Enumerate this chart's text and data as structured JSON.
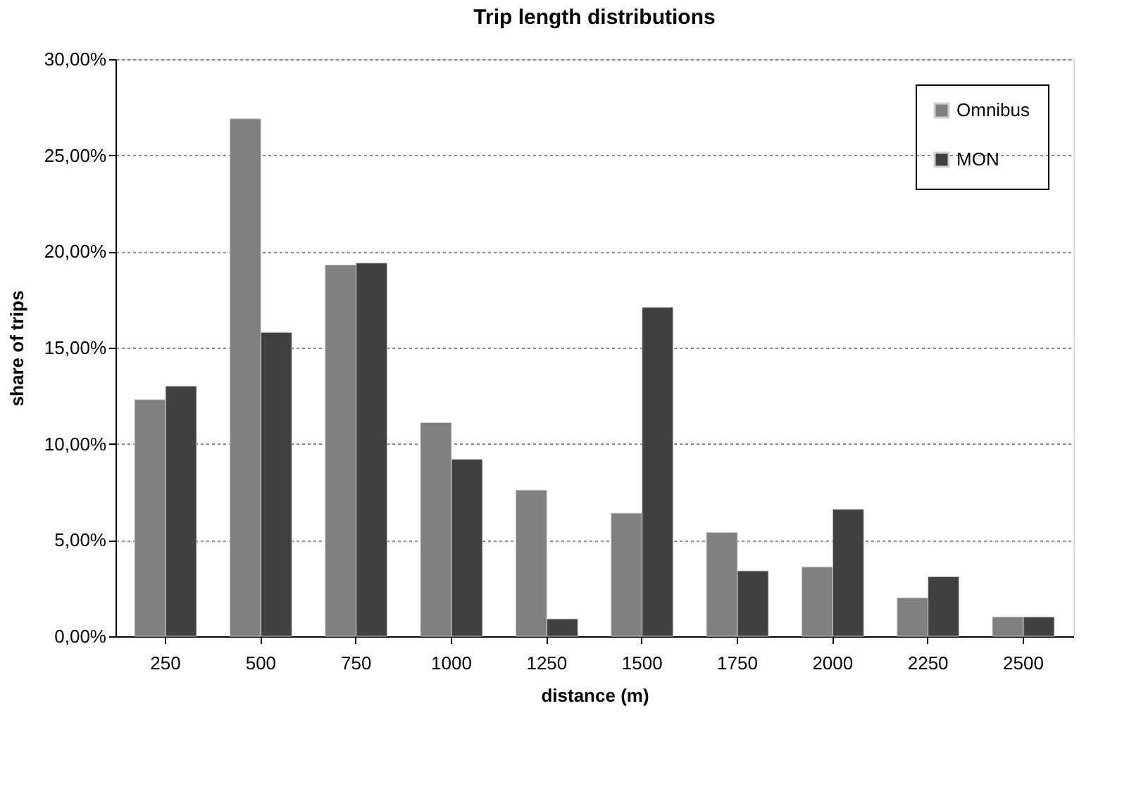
{
  "chart_data": {
    "type": "bar",
    "title": "Trip length distributions",
    "xlabel": "distance (m)",
    "ylabel": "share of trips",
    "categories": [
      "250",
      "500",
      "750",
      "1000",
      "1250",
      "1500",
      "1750",
      "2000",
      "2250",
      "2500"
    ],
    "series": [
      {
        "name": "Omnibus",
        "color": "#808080",
        "values": [
          12.3,
          26.9,
          19.3,
          11.1,
          7.6,
          6.4,
          5.4,
          3.6,
          2.0,
          1.0
        ]
      },
      {
        "name": "MON",
        "color": "#404040",
        "values": [
          13.0,
          15.8,
          19.4,
          9.2,
          0.9,
          17.1,
          3.4,
          6.6,
          3.1,
          1.0
        ]
      }
    ],
    "ylim": [
      0,
      30
    ],
    "yticks": [
      {
        "value": 0,
        "label": "0,00%"
      },
      {
        "value": 5,
        "label": "5,00%"
      },
      {
        "value": 10,
        "label": "10,00%"
      },
      {
        "value": 15,
        "label": "15,00%"
      },
      {
        "value": 20,
        "label": "20,00%"
      },
      {
        "value": 25,
        "label": "25,00%"
      },
      {
        "value": 30,
        "label": "30,00%"
      }
    ],
    "grid": "y",
    "legend": "top right"
  }
}
